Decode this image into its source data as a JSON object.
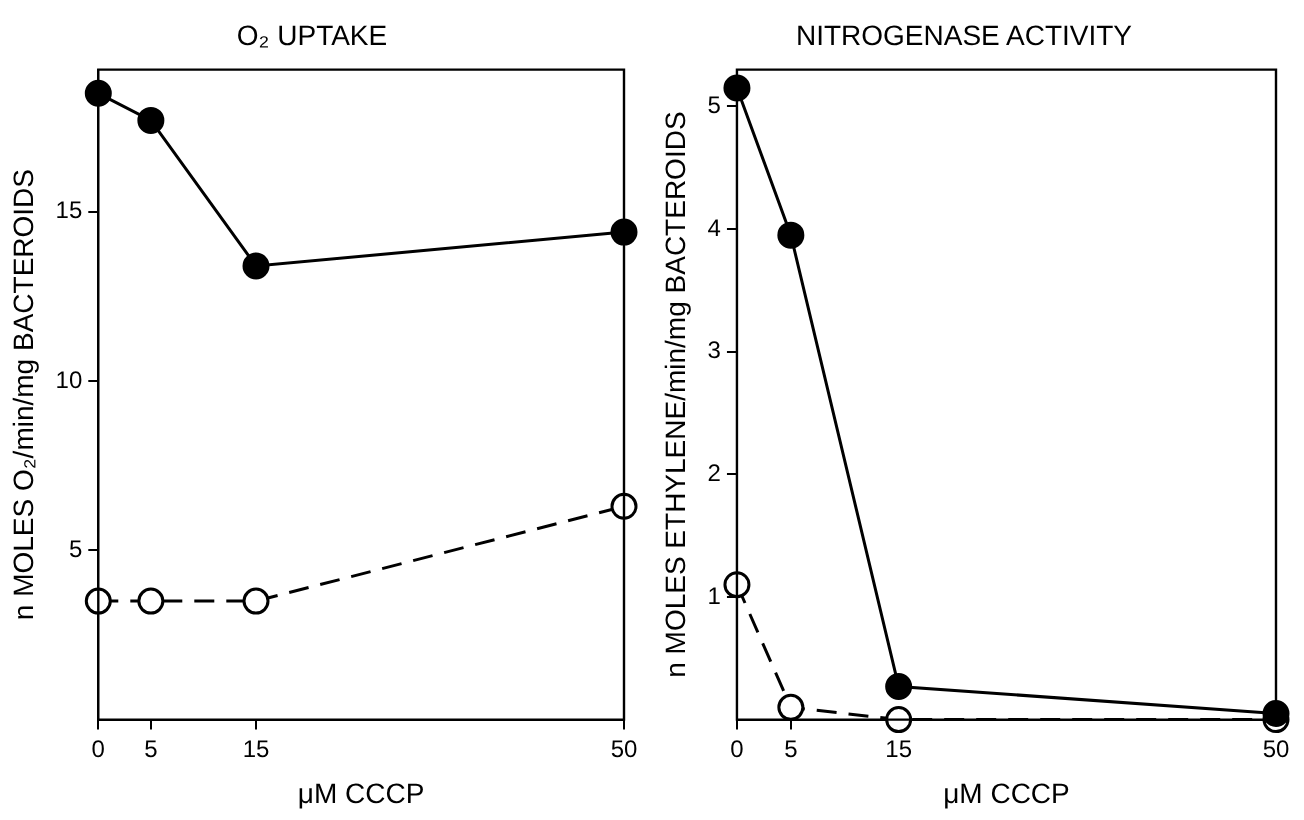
{
  "chart_data": [
    {
      "type": "line",
      "title": "O₂ UPTAKE",
      "xlabel": "μM CCCP",
      "ylabel": "n MOLES O₂/min/mg BACTEROIDS",
      "x": [
        0,
        5,
        15,
        50
      ],
      "xlim": [
        0,
        50
      ],
      "xticks": [
        0,
        5,
        15,
        50
      ],
      "ylim": [
        0,
        19.2
      ],
      "yticks": [
        5,
        10,
        15
      ],
      "grid": false,
      "legend": false,
      "marker": "circle",
      "series": [
        {
          "color": "#000000",
          "line_style": "solid",
          "values": [
            18.5,
            17.7,
            13.4,
            14.4
          ]
        },
        {
          "color": "#000000",
          "line_style": "dashed",
          "values": [
            3.5,
            3.5,
            3.5,
            6.3
          ]
        }
      ]
    },
    {
      "type": "line",
      "title": "NITROGENASE ACTIVITY",
      "xlabel": "μM CCCP",
      "ylabel": "n MOLES ETHYLENE/min/mg BACTEROIDS",
      "x": [
        0,
        5,
        15,
        50
      ],
      "xlim": [
        0,
        50
      ],
      "xticks": [
        0,
        5,
        15,
        50
      ],
      "ylim": [
        0,
        5.3
      ],
      "yticks": [
        1,
        2,
        3,
        4,
        5
      ],
      "grid": false,
      "legend": false,
      "marker": "circle",
      "series": [
        {
          "color": "#000000",
          "line_style": "solid",
          "values": [
            5.15,
            3.95,
            0.27,
            0.05
          ]
        },
        {
          "color": "#000000",
          "line_style": "dashed",
          "values": [
            1.1,
            0.1,
            0,
            0
          ]
        }
      ]
    }
  ]
}
